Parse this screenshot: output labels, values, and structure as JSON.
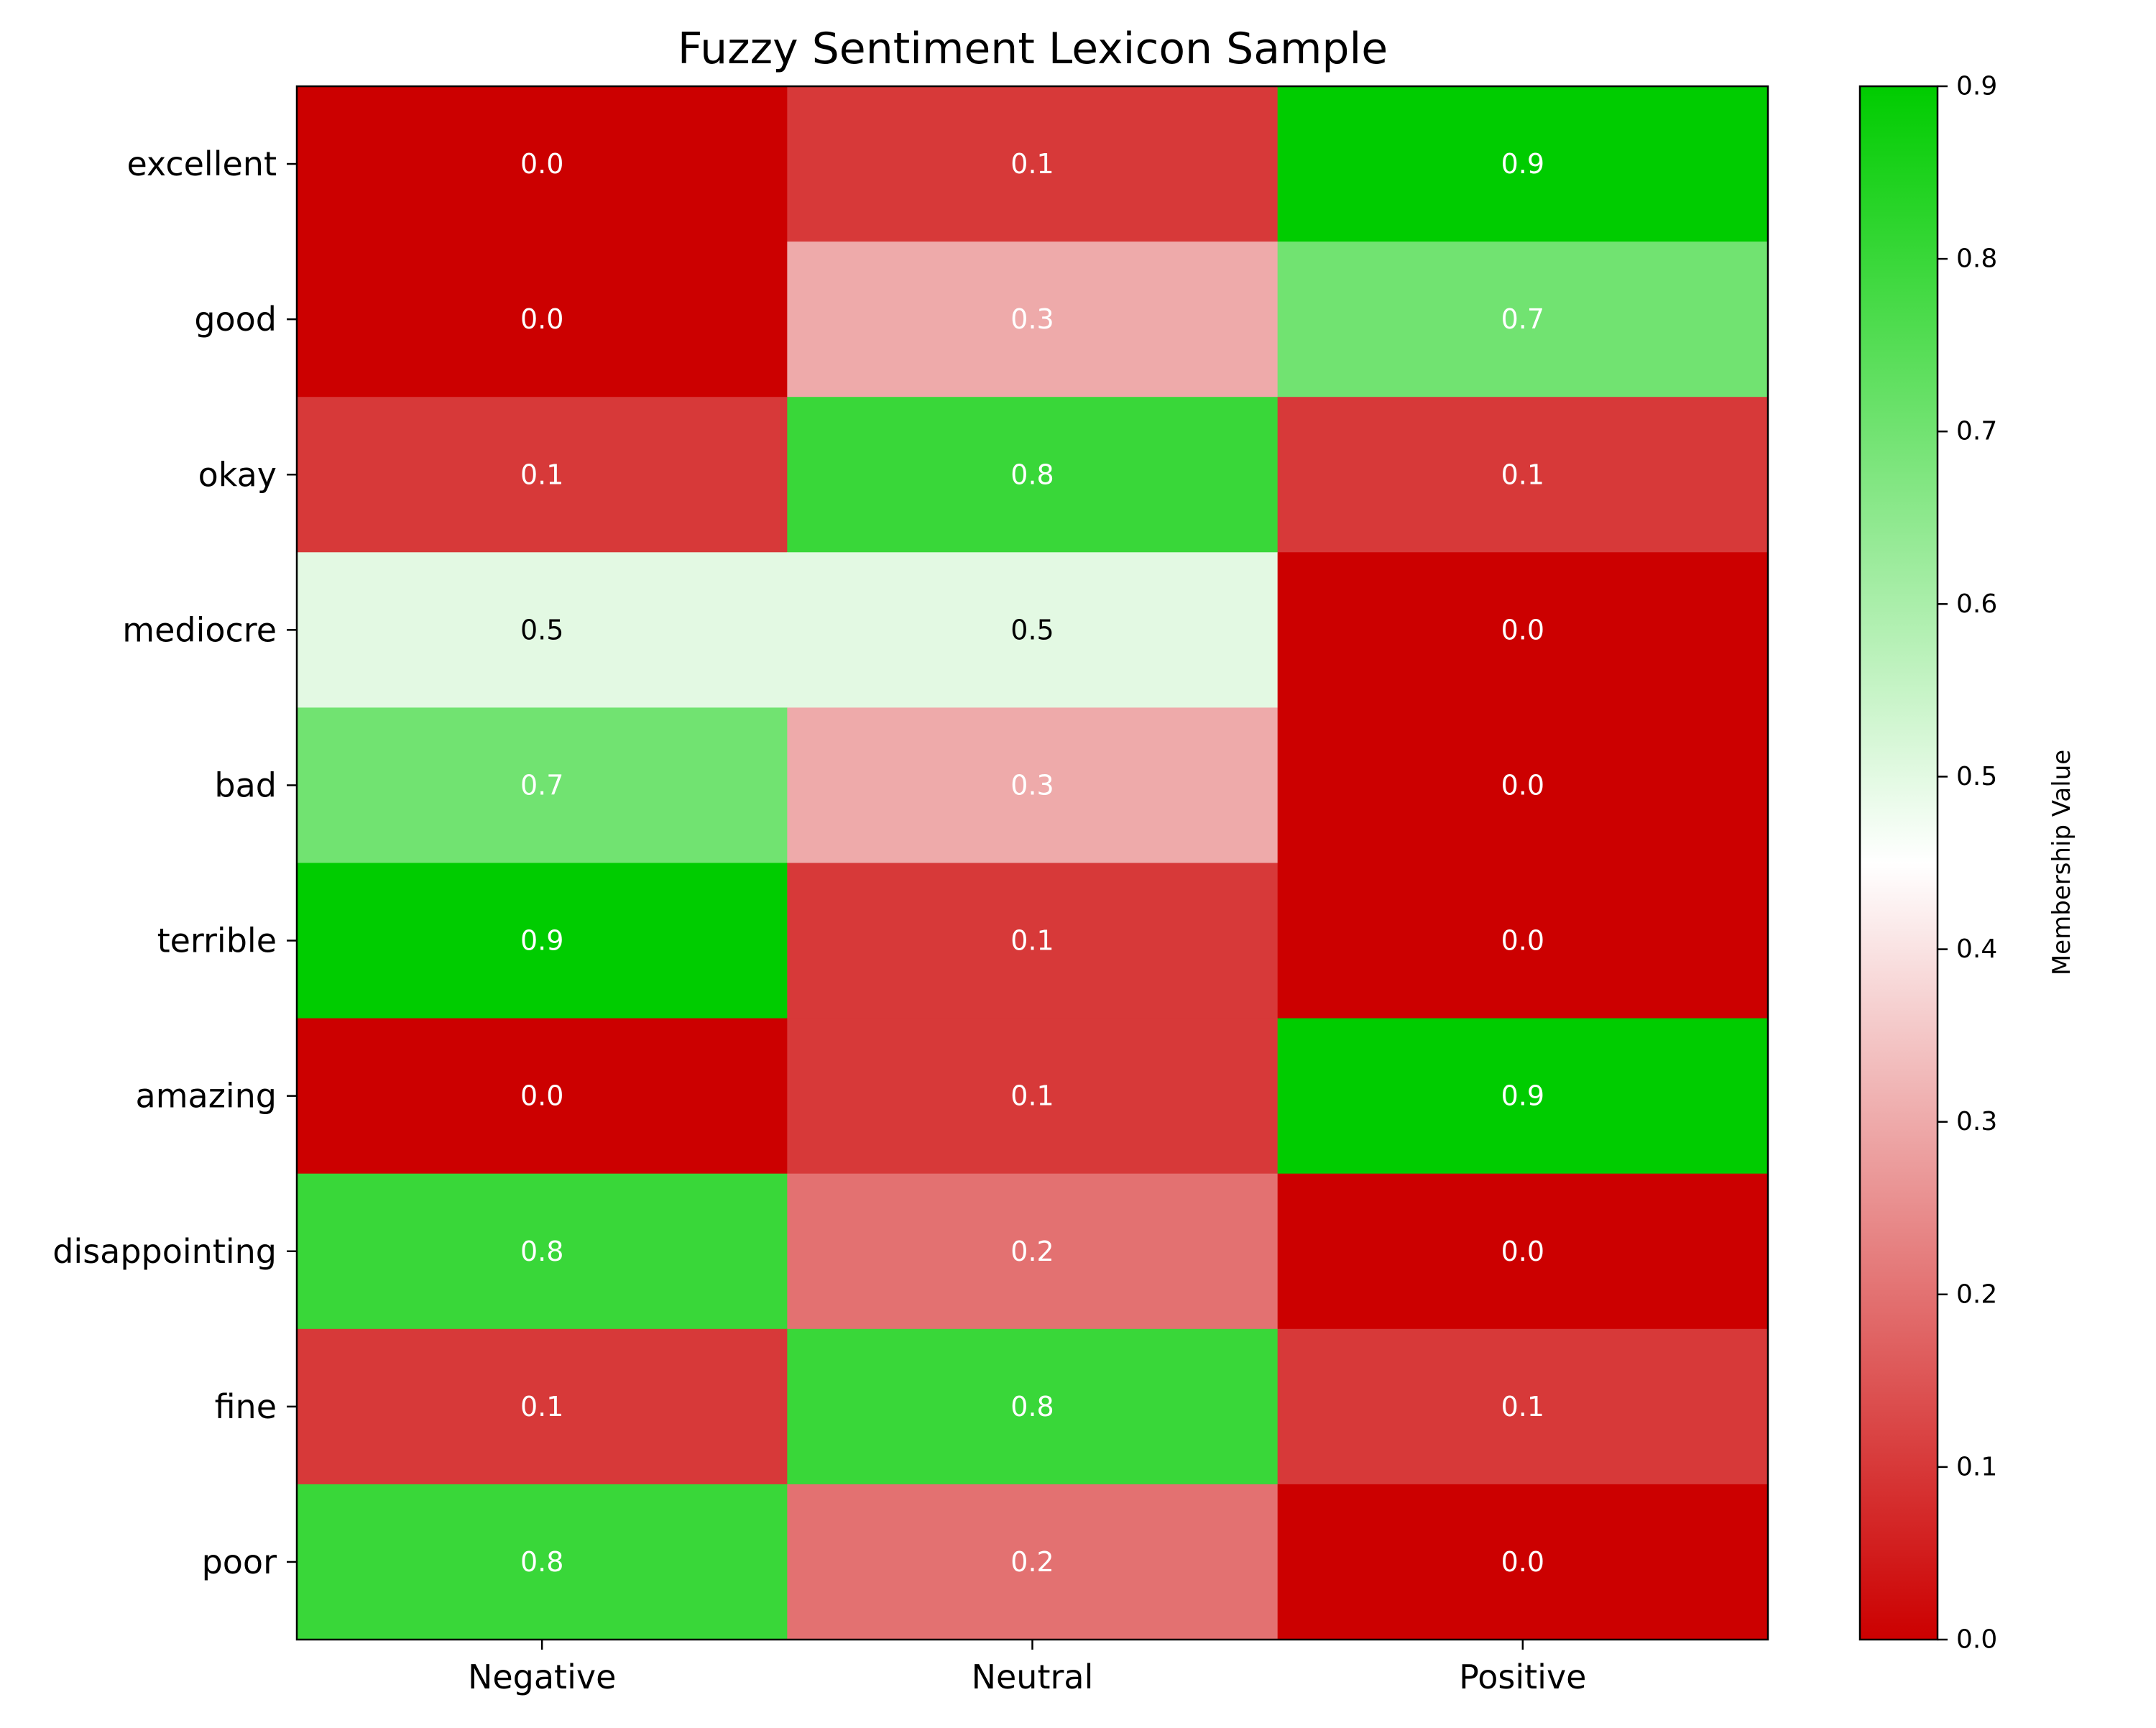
{
  "chart_data": {
    "type": "heatmap",
    "title": "Fuzzy Sentiment Lexicon Sample",
    "x_categories": [
      "Negative",
      "Neutral",
      "Positive"
    ],
    "y_categories": [
      "excellent",
      "good",
      "okay",
      "mediocre",
      "bad",
      "terrible",
      "amazing",
      "disappointing",
      "fine",
      "poor"
    ],
    "values": [
      [
        0.0,
        0.1,
        0.9
      ],
      [
        0.0,
        0.3,
        0.7
      ],
      [
        0.1,
        0.8,
        0.1
      ],
      [
        0.5,
        0.5,
        0.0
      ],
      [
        0.7,
        0.3,
        0.0
      ],
      [
        0.9,
        0.1,
        0.0
      ],
      [
        0.0,
        0.1,
        0.9
      ],
      [
        0.8,
        0.2,
        0.0
      ],
      [
        0.1,
        0.8,
        0.1
      ],
      [
        0.8,
        0.2,
        0.0
      ]
    ],
    "colorbar": {
      "label": "Membership Value",
      "range": [
        0.0,
        0.9
      ],
      "ticks": [
        "0.0",
        "0.1",
        "0.2",
        "0.3",
        "0.4",
        "0.5",
        "0.6",
        "0.7",
        "0.8",
        "0.9"
      ],
      "colors": [
        "#cc0000",
        "#ffffff",
        "#00cc00"
      ]
    },
    "cell_label_colors": {
      "light": "#ffffff",
      "dark": "#000000"
    }
  }
}
